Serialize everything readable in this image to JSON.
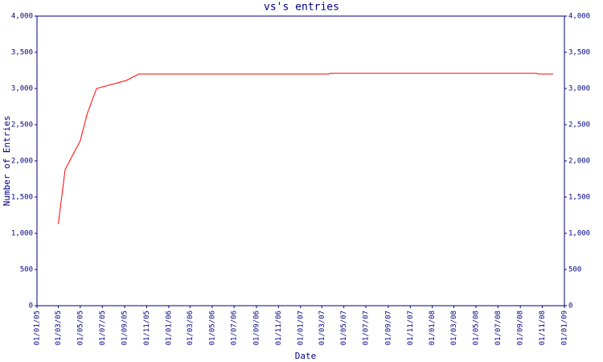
{
  "chart_data": {
    "type": "line",
    "title": "vs's entries",
    "x_label": "Date",
    "y_label": "Number of Entries",
    "x": [
      "01/03/05",
      "20/03/05",
      "01/05/05",
      "20/05/05",
      "15/06/05",
      "05/09/05",
      "10/10/05",
      "20/03/07",
      "25/03/07",
      "15/10/08",
      "20/10/08",
      "01/12/08"
    ],
    "series": [
      {
        "name": "Entries",
        "color": "#ff0000",
        "values": [
          1130,
          1880,
          2280,
          2650,
          3000,
          3110,
          3200,
          3200,
          3210,
          3210,
          3200,
          3200
        ]
      }
    ],
    "xlim": [
      "01/01/05",
      "01/01/09"
    ],
    "xticks": [
      "01/01/05",
      "01/03/05",
      "01/05/05",
      "01/07/05",
      "01/09/05",
      "01/11/05",
      "01/01/06",
      "01/03/06",
      "01/05/06",
      "01/07/06",
      "01/09/06",
      "01/11/06",
      "01/01/07",
      "01/03/07",
      "01/05/07",
      "01/07/07",
      "01/09/07",
      "01/11/07",
      "01/01/08",
      "01/03/08",
      "01/05/08",
      "01/07/08",
      "01/09/08",
      "01/11/08",
      "01/01/09"
    ],
    "ylim": [
      0,
      4000
    ],
    "yticks": [
      0,
      500,
      {
        "value": 1000,
        "label": "1,000"
      },
      {
        "value": 1500,
        "label": "1,500"
      },
      {
        "value": 2000,
        "label": "2,000"
      },
      {
        "value": 2500,
        "label": "2,500"
      },
      {
        "value": 3000,
        "label": "3,000"
      },
      {
        "value": 3500,
        "label": "3,500"
      },
      {
        "value": 4000,
        "label": "4,000"
      }
    ],
    "axis_color": "#000080"
  }
}
